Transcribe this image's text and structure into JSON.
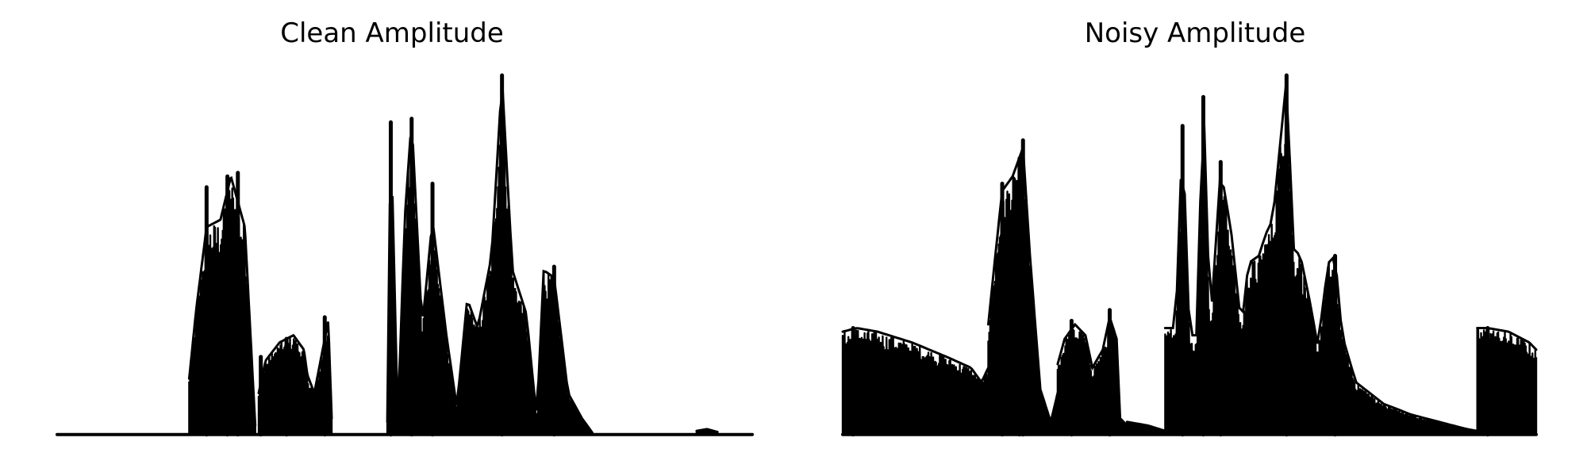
{
  "chart_data": [
    {
      "type": "line",
      "title": "Clean Amplitude",
      "xlabel": "",
      "ylabel": "",
      "axes_visible": false,
      "grid": false,
      "line_color": "#000000",
      "x_range": [
        0,
        1
      ],
      "y_range": [
        0,
        1.0
      ],
      "segments": [
        {
          "x": [
            0.19,
            0.285
          ],
          "env": [
            [
              0.19,
              0.16
            ],
            [
              0.2,
              0.35
            ],
            [
              0.215,
              0.58
            ],
            [
              0.235,
              0.6
            ],
            [
              0.25,
              0.72
            ],
            [
              0.27,
              0.58
            ],
            [
              0.285,
              0.03
            ]
          ],
          "peaks": [
            [
              0.215,
              0.69
            ],
            [
              0.245,
              0.72
            ],
            [
              0.26,
              0.73
            ]
          ]
        },
        {
          "x": [
            0.29,
            0.395
          ],
          "env": [
            [
              0.29,
              0.12
            ],
            [
              0.3,
              0.21
            ],
            [
              0.32,
              0.26
            ],
            [
              0.34,
              0.28
            ],
            [
              0.355,
              0.24
            ],
            [
              0.36,
              0.17
            ],
            [
              0.37,
              0.12
            ],
            [
              0.38,
              0.22
            ],
            [
              0.39,
              0.32
            ],
            [
              0.395,
              0.05
            ]
          ],
          "peaks": [
            [
              0.293,
              0.22
            ],
            [
              0.33,
              0.27
            ],
            [
              0.385,
              0.33
            ]
          ]
        },
        {
          "x": [
            0.475,
            0.77
          ],
          "env": [
            [
              0.475,
              0.04
            ],
            [
              0.48,
              0.86
            ],
            [
              0.49,
              0.04
            ],
            [
              0.5,
              0.6
            ],
            [
              0.51,
              0.88
            ],
            [
              0.525,
              0.3
            ],
            [
              0.54,
              0.6
            ],
            [
              0.56,
              0.28
            ],
            [
              0.575,
              0.08
            ],
            [
              0.59,
              0.38
            ],
            [
              0.605,
              0.3
            ],
            [
              0.625,
              0.5
            ],
            [
              0.64,
              0.99
            ],
            [
              0.655,
              0.46
            ],
            [
              0.675,
              0.34
            ],
            [
              0.69,
              0.05
            ],
            [
              0.7,
              0.46
            ],
            [
              0.715,
              0.44
            ],
            [
              0.735,
              0.12
            ],
            [
              0.755,
              0.05
            ],
            [
              0.77,
              0.01
            ]
          ],
          "peaks": [
            [
              0.48,
              0.87
            ],
            [
              0.51,
              0.88
            ],
            [
              0.54,
              0.7
            ],
            [
              0.64,
              1.0
            ],
            [
              0.715,
              0.47
            ]
          ]
        },
        {
          "x": [
            0.92,
            0.95
          ],
          "env": [
            [
              0.92,
              0.015
            ],
            [
              0.935,
              0.02
            ],
            [
              0.95,
              0.012
            ]
          ],
          "peaks": []
        }
      ],
      "noise_floor": 0.005
    },
    {
      "type": "line",
      "title": "Noisy Amplitude",
      "xlabel": "",
      "ylabel": "",
      "axes_visible": false,
      "grid": false,
      "line_color": "#000000",
      "x_range": [
        0,
        1
      ],
      "y_range": [
        0,
        1.0
      ],
      "segments": [
        {
          "x": [
            0.0,
            0.21
          ],
          "env": [
            [
              0.0,
              0.29
            ],
            [
              0.02,
              0.3
            ],
            [
              0.05,
              0.29
            ],
            [
              0.1,
              0.26
            ],
            [
              0.15,
              0.22
            ],
            [
              0.185,
              0.19
            ],
            [
              0.2,
              0.15
            ],
            [
              0.21,
              0.19
            ]
          ],
          "peaks": [
            [
              0.015,
              0.3
            ]
          ]
        },
        {
          "x": [
            0.21,
            0.31
          ],
          "env": [
            [
              0.21,
              0.31
            ],
            [
              0.22,
              0.5
            ],
            [
              0.23,
              0.68
            ],
            [
              0.245,
              0.72
            ],
            [
              0.26,
              0.8
            ],
            [
              0.27,
              0.5
            ],
            [
              0.285,
              0.13
            ],
            [
              0.3,
              0.04
            ],
            [
              0.31,
              0.12
            ]
          ],
          "peaks": [
            [
              0.23,
              0.7
            ],
            [
              0.255,
              0.77
            ],
            [
              0.26,
              0.82
            ]
          ]
        },
        {
          "x": [
            0.31,
            0.41
          ],
          "env": [
            [
              0.31,
              0.2
            ],
            [
              0.32,
              0.27
            ],
            [
              0.335,
              0.31
            ],
            [
              0.35,
              0.28
            ],
            [
              0.36,
              0.19
            ],
            [
              0.375,
              0.24
            ],
            [
              0.385,
              0.33
            ],
            [
              0.395,
              0.27
            ],
            [
              0.4,
              0.05
            ],
            [
              0.41,
              0.03
            ]
          ],
          "peaks": [
            [
              0.33,
              0.32
            ],
            [
              0.385,
              0.35
            ]
          ]
        },
        {
          "x": [
            0.41,
            0.465
          ],
          "env": [
            [
              0.41,
              0.04
            ],
            [
              0.44,
              0.03
            ],
            [
              0.465,
              0.015
            ]
          ],
          "peaks": []
        },
        {
          "x": [
            0.465,
            0.915
          ],
          "env": [
            [
              0.465,
              0.3
            ],
            [
              0.48,
              0.3
            ],
            [
              0.49,
              0.85
            ],
            [
              0.5,
              0.28
            ],
            [
              0.51,
              0.28
            ],
            [
              0.52,
              0.94
            ],
            [
              0.53,
              0.3
            ],
            [
              0.545,
              0.74
            ],
            [
              0.56,
              0.57
            ],
            [
              0.575,
              0.3
            ],
            [
              0.585,
              0.48
            ],
            [
              0.6,
              0.5
            ],
            [
              0.61,
              0.56
            ],
            [
              0.62,
              0.6
            ],
            [
              0.64,
              0.99
            ],
            [
              0.65,
              0.52
            ],
            [
              0.66,
              0.5
            ],
            [
              0.675,
              0.36
            ],
            [
              0.685,
              0.25
            ],
            [
              0.7,
              0.48
            ],
            [
              0.71,
              0.5
            ],
            [
              0.72,
              0.28
            ],
            [
              0.74,
              0.15
            ],
            [
              0.78,
              0.09
            ],
            [
              0.82,
              0.06
            ],
            [
              0.86,
              0.04
            ],
            [
              0.9,
              0.02
            ],
            [
              0.915,
              0.015
            ]
          ],
          "peaks": [
            [
              0.49,
              0.86
            ],
            [
              0.52,
              0.94
            ],
            [
              0.545,
              0.76
            ],
            [
              0.64,
              1.0
            ],
            [
              0.71,
              0.5
            ]
          ]
        },
        {
          "x": [
            0.915,
            1.0
          ],
          "env": [
            [
              0.915,
              0.3
            ],
            [
              0.93,
              0.3
            ],
            [
              0.96,
              0.29
            ],
            [
              0.99,
              0.26
            ],
            [
              1.0,
              0.24
            ]
          ],
          "peaks": [
            [
              0.93,
              0.3
            ]
          ]
        }
      ],
      "noise_floor": 0.005
    }
  ]
}
